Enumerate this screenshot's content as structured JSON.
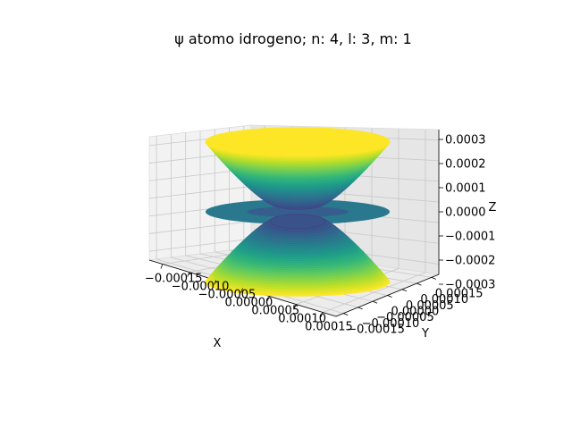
{
  "chart_data": {
    "type": "scatter3d",
    "title": "ψ atomo idrogeno; n: 4, l: 3, m: 1",
    "xlabel": "X",
    "ylabel": "Y",
    "zlabel": "Z",
    "xlim": [
      -0.0002,
      0.0002
    ],
    "ylim": [
      -0.0002,
      0.0002
    ],
    "zlim": [
      -0.0003,
      0.0003
    ],
    "x_tick_labels": [
      "−0.00015",
      "−0.00010",
      "−0.00005",
      "0.00000",
      "0.00005",
      "0.00010",
      "0.00015"
    ],
    "y_tick_labels": [
      "−0.00015",
      "−0.00010",
      "−0.00005",
      "0.00000",
      "0.00005",
      "0.00010",
      "0.00015"
    ],
    "z_tick_labels": [
      "−0.0003",
      "−0.0002",
      "−0.0001",
      "0.0000",
      "0.0001",
      "0.0002",
      "0.0003"
    ],
    "z_ticks": [
      -0.0003,
      -0.0002,
      -0.0001,
      0.0,
      0.0001,
      0.0002,
      0.0003
    ],
    "colormap": "viridis",
    "grid": true,
    "surface_shape": "orbital lobes: two conical cups (upper and lower) and an equatorial disk",
    "lobes": [
      {
        "name": "upper",
        "z_min": 4e-05,
        "z_max": 0.00029,
        "r_min": 6e-05,
        "r_max": 0.0002
      },
      {
        "name": "equatorial",
        "z": 0.0,
        "r_max": 0.0002
      },
      {
        "name": "lower",
        "z_min": -0.00029,
        "z_max": -4e-05,
        "r_min": 6e-05,
        "r_max": 0.0002
      }
    ]
  }
}
